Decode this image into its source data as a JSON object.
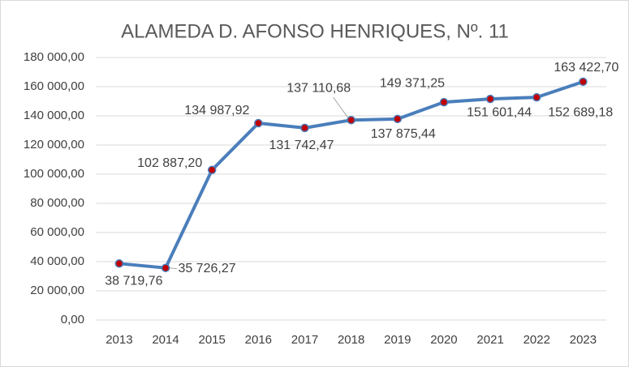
{
  "chart_data": {
    "type": "line",
    "title": "ALAMEDA D. AFONSO HENRIQUES, Nº. 11",
    "categories": [
      "2013",
      "2014",
      "2015",
      "2016",
      "2017",
      "2018",
      "2019",
      "2020",
      "2021",
      "2022",
      "2023"
    ],
    "series": [
      {
        "color": "#4a7ebb",
        "marker_color": "#c00000",
        "values": [
          38719.76,
          35726.27,
          102887.2,
          134987.92,
          131742.47,
          137110.68,
          137875.44,
          149371.25,
          151601.44,
          152689.18,
          163422.7
        ],
        "value_labels": [
          "38 719,76",
          "35 726,27",
          "102 887,20",
          "134 987,92",
          "131 742,47",
          "137 110,68",
          "137 875,44",
          "149 371,25",
          "151 601,44",
          "152 689,18",
          "163 422,70"
        ]
      }
    ],
    "ylim": [
      0,
      180000
    ],
    "yticks": [
      {
        "value": 0,
        "label": "0,00"
      },
      {
        "value": 20000,
        "label": "20 000,00"
      },
      {
        "value": 40000,
        "label": "40 000,00"
      },
      {
        "value": 60000,
        "label": "60 000,00"
      },
      {
        "value": 80000,
        "label": "80 000,00"
      },
      {
        "value": 100000,
        "label": "100 000,00"
      },
      {
        "value": 120000,
        "label": "120 000,00"
      },
      {
        "value": 140000,
        "label": "140 000,00"
      },
      {
        "value": 160000,
        "label": "160 000,00"
      },
      {
        "value": 180000,
        "label": "180 000,00"
      }
    ],
    "grid": true
  }
}
